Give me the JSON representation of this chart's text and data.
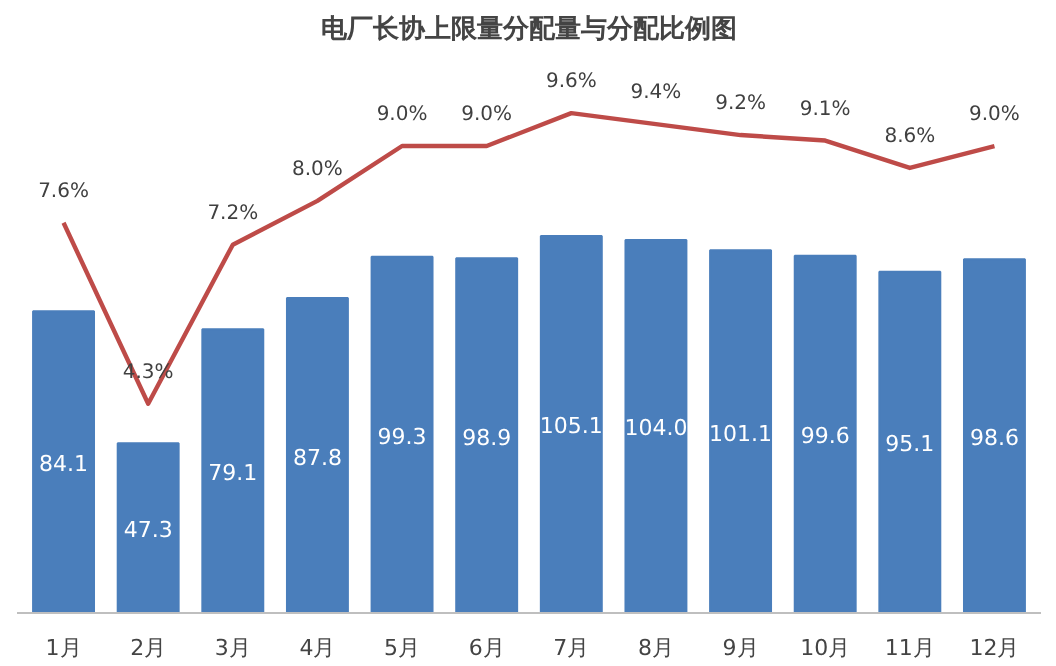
{
  "chart_data": {
    "type": "bar",
    "title": "电厂长协上限量分配量与分配比例图",
    "categories": [
      "1月",
      "2月",
      "3月",
      "4月",
      "5月",
      "6月",
      "7月",
      "8月",
      "9月",
      "10月",
      "11月",
      "12月"
    ],
    "series": [
      {
        "color": "#4a7ebb",
        "values": [
          84.1,
          47.3,
          79.1,
          87.8,
          99.3,
          98.9,
          105.1,
          104.0,
          101.1,
          99.6,
          95.1,
          98.6
        ],
        "value_labels": [
          "84.1",
          "47.3",
          "79.1",
          "87.8",
          "99.3",
          "98.9",
          "105.1",
          "104.0",
          "101.1",
          "99.6",
          "95.1",
          "98.6"
        ]
      },
      {
        "type": "line",
        "axis": "y2",
        "color": "#be4b48",
        "values": [
          7.6,
          4.3,
          7.2,
          8.0,
          9.0,
          9.0,
          9.6,
          9.4,
          9.2,
          9.1,
          8.6,
          9.0
        ],
        "value_labels": [
          "7.6%",
          "4.3%",
          "7.2%",
          "8.0%",
          "9.0%",
          "9.0%",
          "9.6%",
          "9.4%",
          "9.2%",
          "9.1%",
          "8.6%",
          "9.0%"
        ]
      }
    ],
    "grid": false
  }
}
